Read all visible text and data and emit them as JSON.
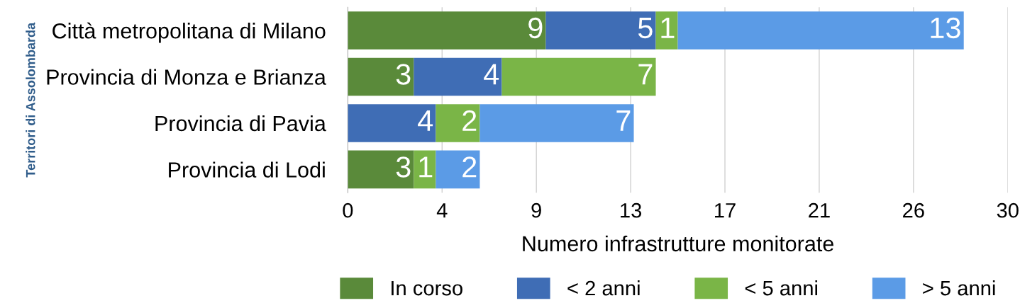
{
  "chart_data": {
    "type": "bar",
    "orientation": "horizontal",
    "stacked": true,
    "data_labels": true,
    "categories": [
      "Città metropolitana di Milano",
      "Provincia di Monza e Brianza",
      "Provincia di Pavia",
      "Provincia di Lodi"
    ],
    "series": [
      {
        "name": "In corso",
        "color": "#5a8a3a",
        "values": [
          9,
          3,
          null,
          3
        ]
      },
      {
        "name": "< 2 anni",
        "color": "#3f6db5",
        "values": [
          5,
          4,
          4,
          null
        ]
      },
      {
        "name": "< 5 anni",
        "color": "#7ab547",
        "values": [
          1,
          7,
          2,
          1
        ]
      },
      {
        "name": "> 5 anni",
        "color": "#5b9be6",
        "values": [
          13,
          null,
          7,
          2
        ]
      }
    ],
    "xlim": [
      0,
      30
    ],
    "xticks": [
      0,
      {
        "value": 4.286,
        "label": "4"
      },
      {
        "value": 8.571,
        "label": "9"
      },
      {
        "value": 12.857,
        "label": "13"
      },
      {
        "value": 17.143,
        "label": "17"
      },
      {
        "value": 21.429,
        "label": "21"
      },
      {
        "value": 25.714,
        "label": "26"
      },
      30
    ],
    "xlabel": "Numero infrastrutture monitorate",
    "ylabel": "Territori di Assolombarda",
    "grid": "x",
    "legend": "bottom"
  }
}
